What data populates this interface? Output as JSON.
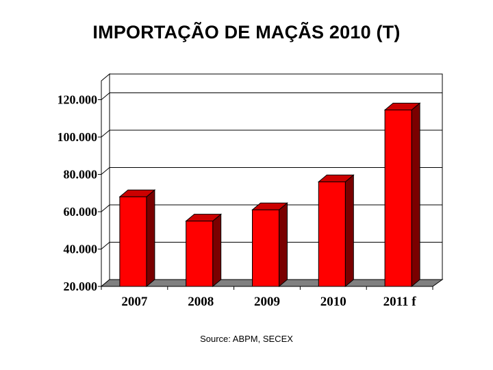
{
  "title": "IMPORTAÇÃO DE MAÇÃS 2010 (T)",
  "source": "Source: ABPM, SECEX",
  "colors": {
    "bar_front": "#ff0000",
    "bar_top": "#cc0000",
    "bar_side": "#7a0000",
    "floor": "#808080",
    "gridline": "#000000"
  },
  "chart_data": {
    "type": "bar",
    "title": "IMPORTAÇÃO DE MAÇÃS 2010 (T)",
    "categories": [
      "2007",
      "2008",
      "2009",
      "2010",
      "2011 f"
    ],
    "values": [
      68000,
      55000,
      61000,
      76000,
      114500
    ],
    "ylim": [
      20000,
      120000
    ],
    "yticks": [
      20000,
      40000,
      60000,
      80000,
      100000,
      120000
    ],
    "ytick_labels": [
      "20.000",
      "40.000",
      "60.000",
      "80.000",
      "100.000",
      "120.000"
    ],
    "xlabel": "",
    "ylabel": "",
    "grid": true,
    "style": "3d-column"
  }
}
